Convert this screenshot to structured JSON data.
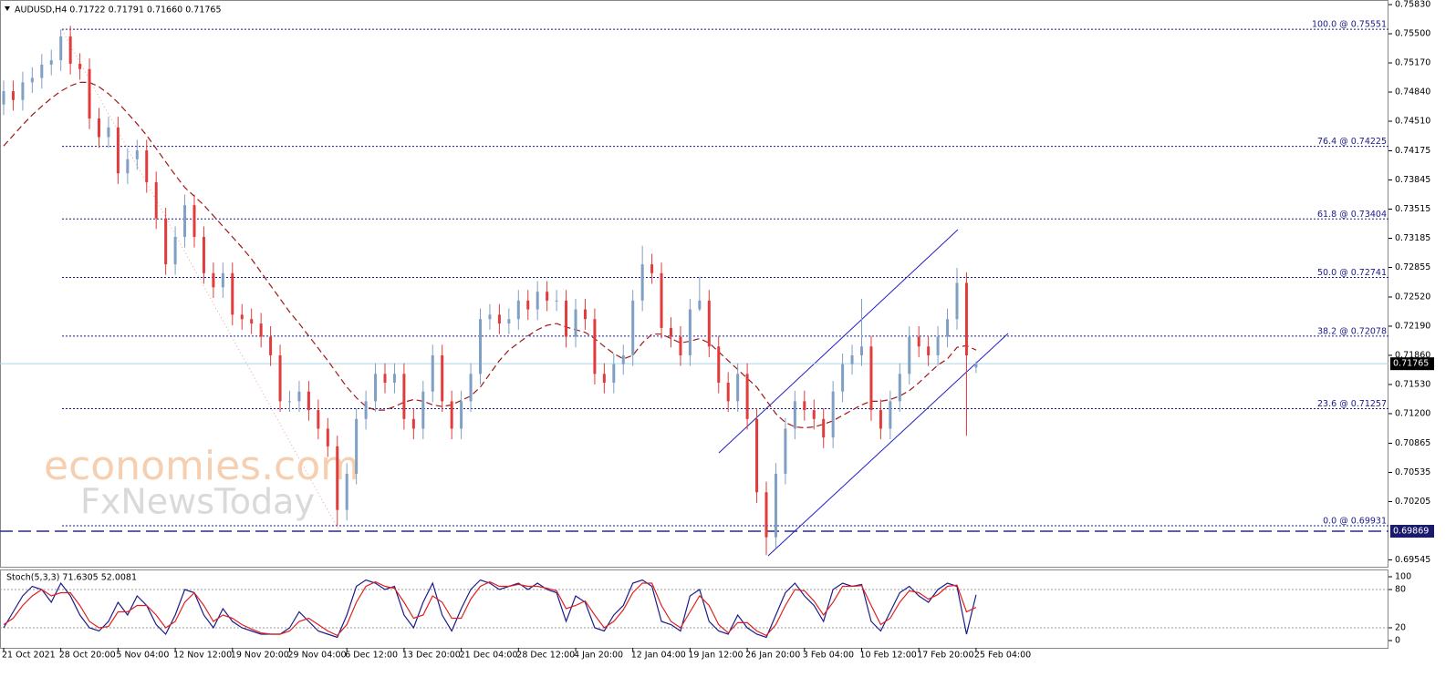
{
  "chart_data": {
    "type": "candlestick",
    "title": "AUDUSD,H4  0.71722 0.71791 0.71660 0.71765",
    "categories": [
      "21 Oct 2021",
      null,
      null,
      null,
      null,
      null,
      "28 Oct 20:00",
      null,
      null,
      null,
      null,
      null,
      "5 Nov 04:00",
      null,
      null,
      null,
      null,
      null,
      "12 Nov 12:00",
      null,
      null,
      null,
      null,
      null,
      "19 Nov 20:00",
      null,
      null,
      null,
      null,
      null,
      "29 Nov 04:00",
      null,
      null,
      null,
      null,
      null,
      "6 Dec 12:00",
      null,
      null,
      null,
      null,
      null,
      "13 Dec 20:00",
      null,
      null,
      null,
      null,
      null,
      "21 Dec 04:00",
      null,
      null,
      null,
      null,
      null,
      "28 Dec 12:00",
      null,
      null,
      null,
      null,
      null,
      "4 Jan 20:00",
      null,
      null,
      null,
      null,
      null,
      "12 Jan 04:00",
      null,
      null,
      null,
      null,
      null,
      "19 Jan 12:00",
      null,
      null,
      null,
      null,
      null,
      "26 Jan 20:00",
      null,
      null,
      null,
      null,
      null,
      "3 Feb 04:00",
      null,
      null,
      null,
      null,
      null,
      "10 Feb 12:00",
      null,
      null,
      null,
      null,
      null,
      "17 Feb 20:00",
      null,
      null,
      null,
      null,
      null,
      "25 Feb 04:00"
    ],
    "open": [
      0.747,
      0.7485,
      0.7475,
      0.7495,
      0.75,
      0.7515,
      0.752,
      0.7547,
      0.7516,
      0.751,
      0.7454,
      0.7433,
      0.7444,
      0.7392,
      0.7408,
      0.7418,
      0.7382,
      0.7341,
      0.7289,
      0.732,
      0.7356,
      0.732,
      0.7279,
      0.7263,
      0.7279,
      0.7232,
      0.7227,
      0.7222,
      0.7207,
      0.7186,
      0.7134,
      0.7134,
      0.7145,
      0.7124,
      0.7103,
      0.7083,
      0.7011,
      0.7052,
      0.7114,
      0.7134,
      0.7165,
      0.7155,
      0.7165,
      0.7114,
      0.7103,
      0.7145,
      0.7186,
      0.7134,
      0.7103,
      0.7134,
      0.7165,
      0.7227,
      0.7232,
      0.7222,
      0.7227,
      0.7248,
      0.7238,
      0.7258,
      0.7248,
      0.7248,
      0.7207,
      0.7238,
      0.7227,
      0.7165,
      0.7155,
      0.7176,
      0.7186,
      0.7248,
      0.7289,
      0.7279,
      0.7217,
      0.7207,
      0.7186,
      0.7238,
      0.7248,
      0.7196,
      0.7155,
      0.7134,
      0.7165,
      0.7114,
      0.7031,
      0.698,
      0.7052,
      0.7103,
      0.7134,
      0.7124,
      0.7114,
      0.7093,
      0.7145,
      0.7176,
      0.7186,
      0.7196,
      0.7124,
      0.7103,
      0.7134,
      0.7165,
      0.7207,
      0.7196,
      0.7186,
      0.7207,
      0.7227,
      0.7268,
      0.71722
    ],
    "high": [
      0.7497,
      0.7497,
      0.7507,
      0.7512,
      0.7527,
      0.7532,
      0.7555,
      0.7559,
      0.7528,
      0.7522,
      0.7466,
      0.7456,
      0.7456,
      0.742,
      0.743,
      0.743,
      0.7394,
      0.7353,
      0.7332,
      0.7368,
      0.7368,
      0.7332,
      0.7291,
      0.7291,
      0.7291,
      0.7244,
      0.7239,
      0.7234,
      0.7219,
      0.7198,
      0.7146,
      0.7157,
      0.7157,
      0.7136,
      0.7115,
      0.7095,
      0.7064,
      0.7126,
      0.7146,
      0.7177,
      0.7177,
      0.7177,
      0.7177,
      0.7126,
      0.7157,
      0.7198,
      0.7198,
      0.7146,
      0.7146,
      0.7177,
      0.7239,
      0.7244,
      0.7244,
      0.7239,
      0.726,
      0.726,
      0.727,
      0.727,
      0.726,
      0.726,
      0.725,
      0.725,
      0.7239,
      0.7177,
      0.7188,
      0.7198,
      0.726,
      0.731,
      0.7301,
      0.7291,
      0.7229,
      0.7219,
      0.725,
      0.7275,
      0.726,
      0.7208,
      0.7167,
      0.7177,
      0.7177,
      0.7126,
      0.7043,
      0.7064,
      0.7115,
      0.7146,
      0.7146,
      0.7136,
      0.7126,
      0.7157,
      0.7188,
      0.7198,
      0.725,
      0.7208,
      0.7136,
      0.7146,
      0.7177,
      0.7219,
      0.7219,
      0.7208,
      0.7219,
      0.7239,
      0.7285,
      0.728,
      0.71791
    ],
    "low": [
      0.7458,
      0.7463,
      0.7463,
      0.7483,
      0.7488,
      0.7503,
      0.7508,
      0.7504,
      0.7498,
      0.7442,
      0.7421,
      0.7421,
      0.738,
      0.738,
      0.7396,
      0.737,
      0.7329,
      0.7277,
      0.7277,
      0.7308,
      0.7308,
      0.7267,
      0.7251,
      0.7251,
      0.722,
      0.7215,
      0.721,
      0.7195,
      0.7174,
      0.7122,
      0.7122,
      0.7122,
      0.7112,
      0.7091,
      0.7071,
      0.6993,
      0.6999,
      0.704,
      0.7102,
      0.7122,
      0.7143,
      0.7143,
      0.7102,
      0.7091,
      0.7091,
      0.7133,
      0.7122,
      0.7091,
      0.7091,
      0.7122,
      0.7153,
      0.7215,
      0.721,
      0.721,
      0.7215,
      0.7226,
      0.7226,
      0.7236,
      0.7236,
      0.7195,
      0.7195,
      0.7215,
      0.7153,
      0.7143,
      0.7143,
      0.7164,
      0.7174,
      0.7236,
      0.7267,
      0.7205,
      0.7195,
      0.7174,
      0.7174,
      0.7236,
      0.7184,
      0.7143,
      0.7122,
      0.7122,
      0.7102,
      0.7019,
      0.696,
      0.6968,
      0.704,
      0.7091,
      0.7112,
      0.7102,
      0.7081,
      0.7081,
      0.7133,
      0.7164,
      0.7174,
      0.7112,
      0.7091,
      0.7091,
      0.7122,
      0.7153,
      0.7184,
      0.7174,
      0.7174,
      0.7195,
      0.7215,
      0.7095,
      0.7166
    ],
    "close": [
      0.7485,
      0.7475,
      0.7495,
      0.75,
      0.7515,
      0.752,
      0.7547,
      0.7516,
      0.751,
      0.7454,
      0.7433,
      0.7444,
      0.7392,
      0.7408,
      0.7418,
      0.7382,
      0.7341,
      0.7289,
      0.732,
      0.7356,
      0.732,
      0.7279,
      0.7263,
      0.7279,
      0.7232,
      0.7227,
      0.7222,
      0.7207,
      0.7186,
      0.7134,
      0.7134,
      0.7145,
      0.7124,
      0.7103,
      0.7083,
      0.7011,
      0.7052,
      0.7114,
      0.7134,
      0.7165,
      0.7155,
      0.7165,
      0.7114,
      0.7103,
      0.7145,
      0.7186,
      0.7134,
      0.7103,
      0.7134,
      0.7165,
      0.7227,
      0.7232,
      0.7222,
      0.7227,
      0.7248,
      0.7238,
      0.7258,
      0.7248,
      0.7248,
      0.7207,
      0.7238,
      0.7227,
      0.7165,
      0.7155,
      0.7176,
      0.7186,
      0.7248,
      0.7289,
      0.7279,
      0.7217,
      0.7207,
      0.7186,
      0.7238,
      0.7248,
      0.7196,
      0.7155,
      0.7134,
      0.7165,
      0.7114,
      0.7031,
      0.698,
      0.7052,
      0.7103,
      0.7134,
      0.7124,
      0.7114,
      0.7093,
      0.7145,
      0.7176,
      0.7186,
      0.7196,
      0.7124,
      0.7103,
      0.7134,
      0.7165,
      0.7207,
      0.7196,
      0.7186,
      0.7207,
      0.7227,
      0.7268,
      0.7186,
      0.71765
    ],
    "up_color": "#7f9fc4",
    "down_color": "#e23b3b",
    "moving_average": {
      "color": "#a01818",
      "values": [
        0.7423,
        0.7435,
        0.7447,
        0.7458,
        0.7468,
        0.7477,
        0.7485,
        0.7491,
        0.7495,
        0.7495,
        0.749,
        0.7482,
        0.7472,
        0.746,
        0.7448,
        0.7435,
        0.742,
        0.7405,
        0.739,
        0.7376,
        0.7366,
        0.7356,
        0.7344,
        0.7332,
        0.732,
        0.7308,
        0.7295,
        0.728,
        0.7265,
        0.725,
        0.7235,
        0.7222,
        0.7208,
        0.7194,
        0.718,
        0.7165,
        0.715,
        0.7138,
        0.7128,
        0.7124,
        0.7124,
        0.7128,
        0.7133,
        0.7136,
        0.7134,
        0.713,
        0.7128,
        0.713,
        0.7135,
        0.714,
        0.715,
        0.7165,
        0.718,
        0.7192,
        0.72,
        0.7208,
        0.7215,
        0.722,
        0.7222,
        0.7218,
        0.7215,
        0.7212,
        0.7205,
        0.7196,
        0.7188,
        0.7182,
        0.7186,
        0.72,
        0.721,
        0.721,
        0.7205,
        0.72,
        0.7202,
        0.7205,
        0.72,
        0.719,
        0.718,
        0.717,
        0.716,
        0.715,
        0.7135,
        0.712,
        0.711,
        0.7105,
        0.7104,
        0.7105,
        0.7108,
        0.7112,
        0.7118,
        0.7124,
        0.713,
        0.7134,
        0.7134,
        0.7136,
        0.714,
        0.7146,
        0.7155,
        0.7165,
        0.7175,
        0.7182,
        0.7195,
        0.7197,
        0.7192
      ]
    },
    "ylim": [
      0.69467,
      0.75882
    ],
    "yticks": [
      {
        "value": 0.7583,
        "label": "0.75830"
      },
      {
        "value": 0.755,
        "label": "0.75500"
      },
      {
        "value": 0.7517,
        "label": "0.75170"
      },
      {
        "value": 0.7484,
        "label": "0.74840"
      },
      {
        "value": 0.7451,
        "label": "0.74510"
      },
      0.74175,
      0.73845,
      0.73515,
      0.73185,
      0.72855,
      {
        "value": 0.7252,
        "label": "0.72520"
      },
      {
        "value": 0.7219,
        "label": "0.72190"
      },
      {
        "value": 0.7186,
        "label": "0.71860"
      },
      {
        "value": 0.7153,
        "label": "0.71530"
      },
      {
        "value": 0.712,
        "label": "0.71200"
      },
      0.70865,
      0.70535,
      0.70205,
      0.69545
    ],
    "fib_levels": [
      {
        "value": 0.75551,
        "label": "100.0 @ 0.75551"
      },
      {
        "value": 0.74225,
        "label": "76.4 @ 0.74225"
      },
      {
        "value": 0.73404,
        "label": "61.8 @ 0.73404"
      },
      {
        "value": 0.72741,
        "label": "50.0 @ 0.72741"
      },
      {
        "value": 0.72078,
        "label": "38.2 @ 0.72078"
      },
      {
        "value": 0.71257,
        "label": "23.6 @ 0.71257"
      },
      {
        "value": 0.69931,
        "label": "0.0 @ 0.69931"
      }
    ],
    "price_line": 0.71765,
    "support_line": 0.69869,
    "watermark": [
      "economies.com",
      "FxNewsToday"
    ],
    "indicator": {
      "title": "Stoch(5,3,3) 71.6305 52.0081",
      "ylim": [
        0,
        100
      ],
      "yticks": [
        100,
        80,
        20,
        0
      ],
      "lines": [
        {
          "color": "#1c1c8a",
          "values": [
            20,
            45,
            70,
            85,
            80,
            60,
            90,
            70,
            40,
            20,
            15,
            30,
            60,
            40,
            70,
            55,
            25,
            10,
            40,
            80,
            75,
            40,
            20,
            50,
            30,
            20,
            15,
            10,
            10,
            10,
            20,
            45,
            30,
            15,
            10,
            5,
            40,
            85,
            95,
            90,
            80,
            85,
            40,
            20,
            60,
            90,
            40,
            15,
            50,
            80,
            95,
            90,
            80,
            85,
            90,
            80,
            90,
            80,
            75,
            30,
            70,
            60,
            20,
            15,
            40,
            55,
            90,
            95,
            85,
            30,
            25,
            15,
            70,
            80,
            30,
            15,
            10,
            40,
            20,
            10,
            5,
            40,
            75,
            90,
            70,
            55,
            30,
            80,
            90,
            85,
            88,
            30,
            15,
            45,
            75,
            85,
            70,
            60,
            80,
            90,
            85,
            10,
            71.6305
          ]
        },
        {
          "color": "#e02020",
          "values": [
            25,
            35,
            55,
            70,
            80,
            70,
            75,
            75,
            55,
            30,
            20,
            22,
            45,
            45,
            55,
            55,
            40,
            20,
            30,
            60,
            75,
            55,
            30,
            40,
            35,
            25,
            18,
            12,
            10,
            10,
            15,
            30,
            35,
            25,
            15,
            8,
            25,
            60,
            85,
            92,
            85,
            82,
            60,
            35,
            40,
            70,
            60,
            35,
            35,
            65,
            85,
            92,
            85,
            85,
            88,
            85,
            85,
            82,
            78,
            50,
            55,
            62,
            40,
            20,
            30,
            48,
            75,
            90,
            90,
            55,
            30,
            20,
            45,
            70,
            55,
            25,
            12,
            28,
            28,
            15,
            8,
            25,
            55,
            80,
            78,
            62,
            40,
            60,
            85,
            85,
            86,
            55,
            25,
            35,
            60,
            78,
            75,
            65,
            72,
            85,
            87,
            45,
            52.0081
          ]
        }
      ]
    }
  }
}
